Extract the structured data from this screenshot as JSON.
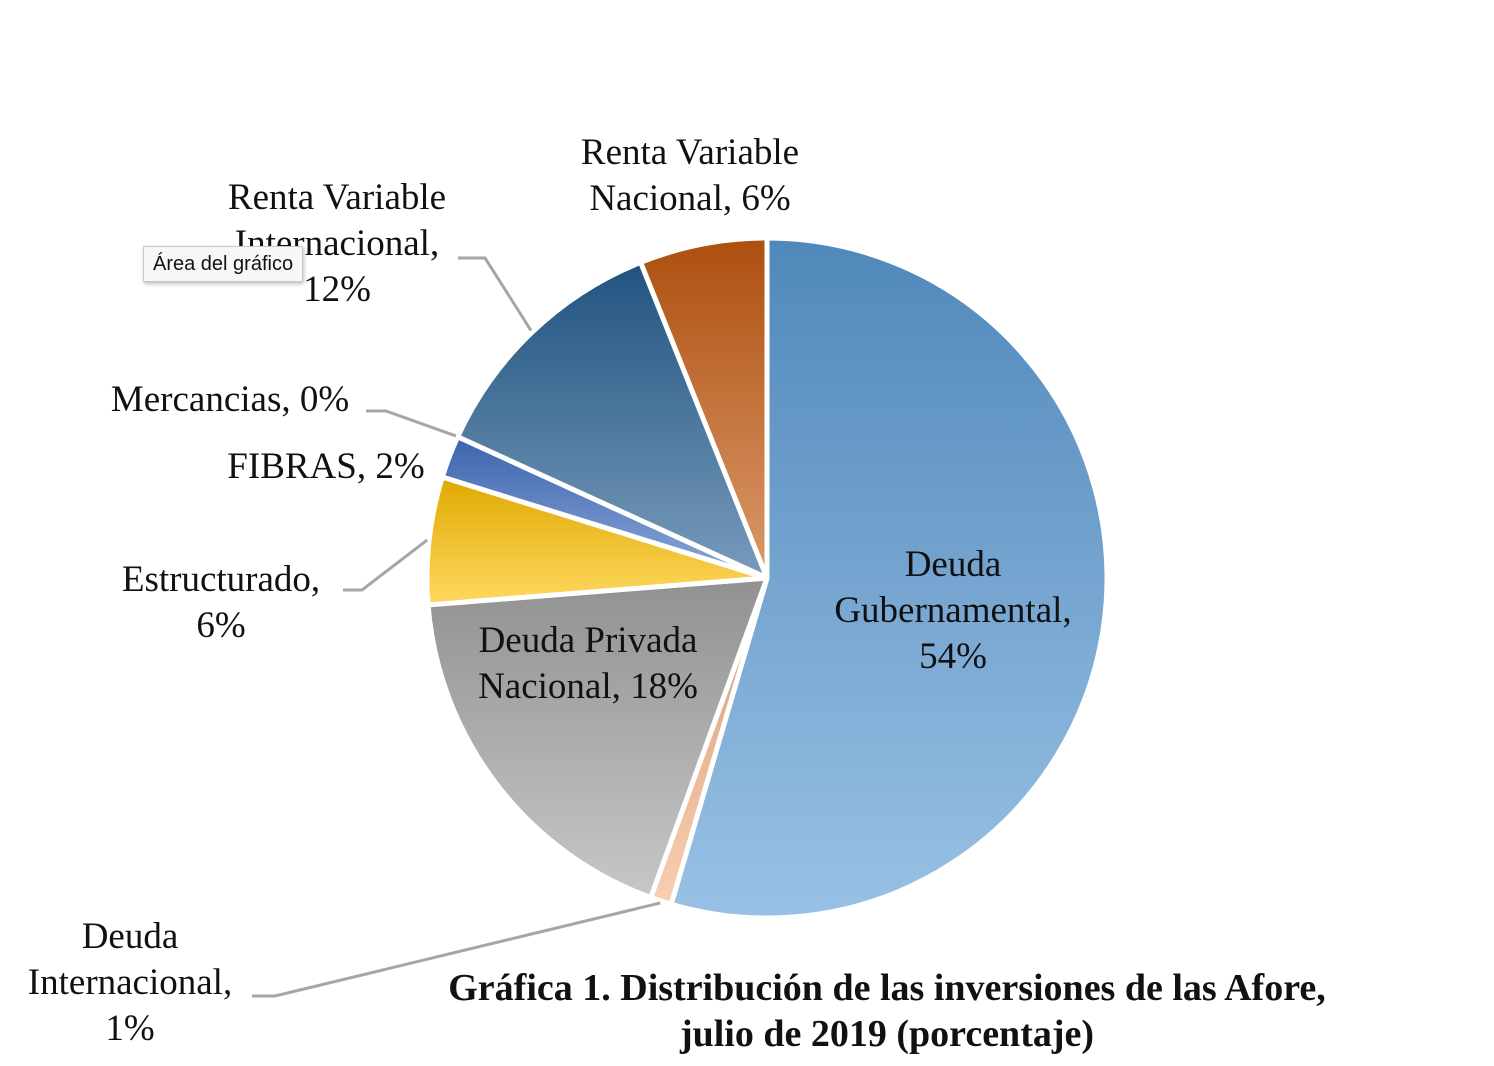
{
  "chart_data": {
    "type": "pie",
    "title": "Gráfica 1. Distribución de las inversiones de las Afore,",
    "subtitle": "julio de 2019 (porcentaje)",
    "slices": [
      {
        "label_lines": [
          "Deuda",
          "Gubernamental,",
          "54%"
        ],
        "category": "Deuda Gubernamental",
        "value": 54,
        "color": "#5b9bd5"
      },
      {
        "label_lines": [
          "Deuda",
          "Internacional,",
          "1%"
        ],
        "category": "Deuda Internacional",
        "value": 1,
        "color": "#f4b183"
      },
      {
        "label_lines": [
          "Deuda Privada",
          "Nacional, 18%"
        ],
        "category": "Deuda Privada Nacional",
        "value": 18,
        "color": "#a5a5a5"
      },
      {
        "label_lines": [
          "Estructurado,",
          "6%"
        ],
        "category": "Estructurado",
        "value": 6,
        "color": "#ffc000"
      },
      {
        "label_lines": [
          "FIBRAS, 2%"
        ],
        "category": "FIBRAS",
        "value": 2,
        "color": "#4472c4"
      },
      {
        "label_lines": [
          "Mercancias, 0%"
        ],
        "category": "Mercancias",
        "value": 0,
        "color": "#70ad47"
      },
      {
        "label_lines": [
          "Renta Variable",
          "Internacional,",
          "12%"
        ],
        "category": "Renta Variable Internacional",
        "value": 12,
        "color": "#255e91"
      },
      {
        "label_lines": [
          "Renta Variable",
          "Nacional, 6%"
        ],
        "category": "Renta Variable Nacional",
        "value": 6,
        "color": "#c55a11"
      }
    ]
  },
  "tooltip": {
    "text": "Área del gráfico"
  }
}
